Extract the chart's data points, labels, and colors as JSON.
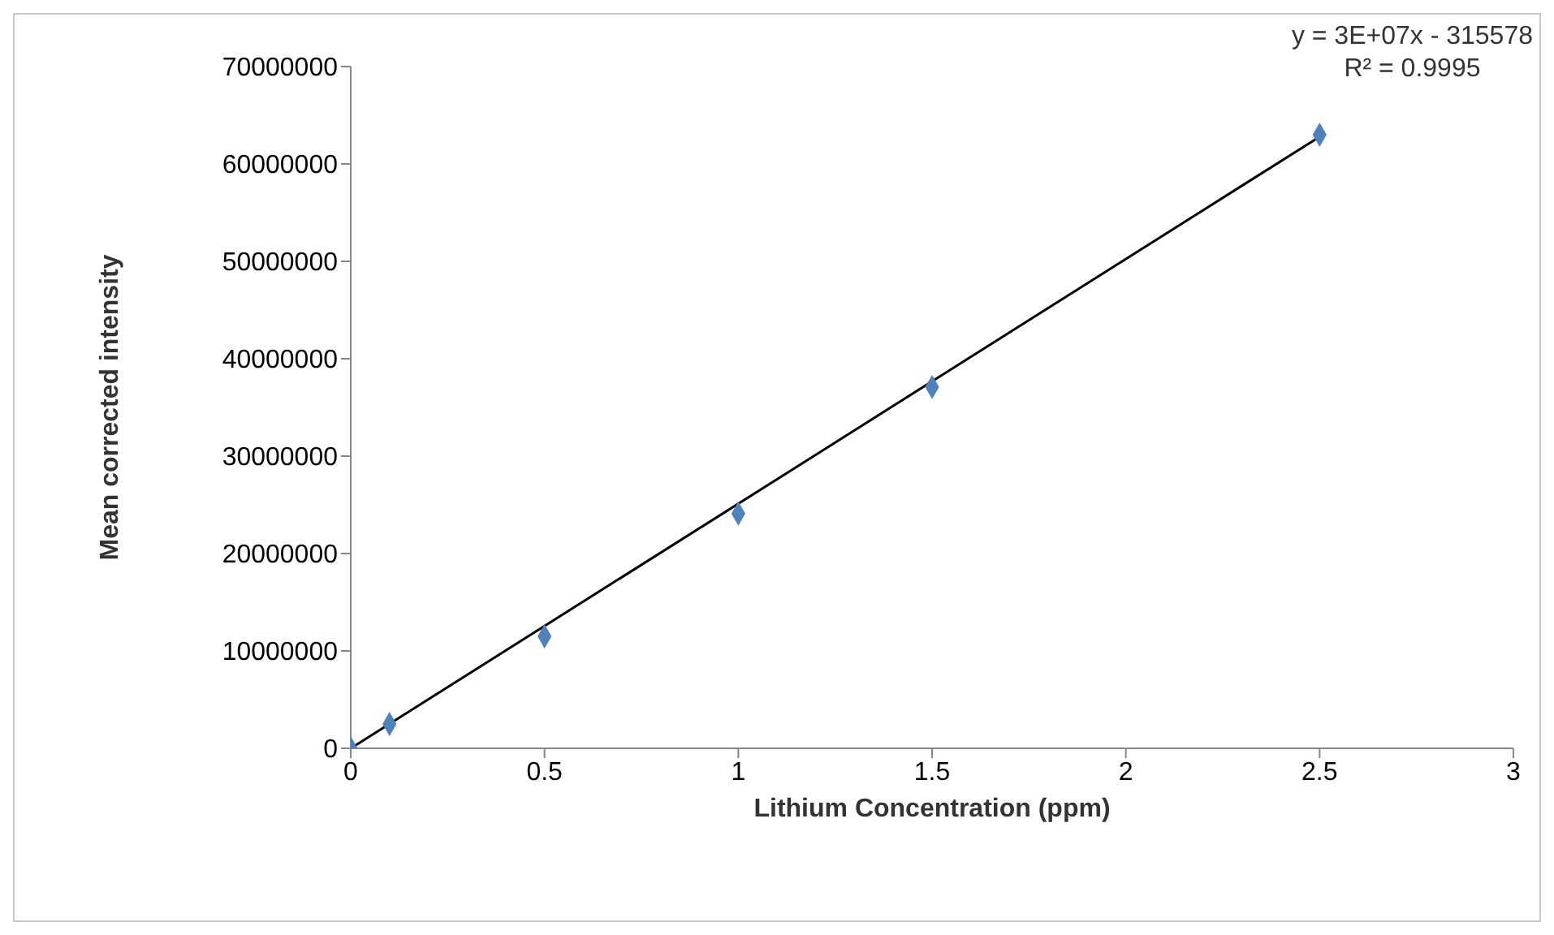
{
  "chart_data": {
    "type": "scatter",
    "xlabel": "Lithium Concentration (ppm)",
    "ylabel": "Mean corrected intensity",
    "x": [
      0,
      0.1,
      0.5,
      1,
      1.5,
      2.5
    ],
    "series": [
      {
        "color": "#4f81bd",
        "marker": "diamond",
        "values": [
          0,
          2500000,
          11500000,
          24100000,
          37100000,
          63000000
        ]
      },
      {
        "type": "line",
        "color": "#000000",
        "marker": "none",
        "line_style": "solid",
        "x": [
          0,
          2.5
        ],
        "values": [
          0,
          62800000
        ]
      }
    ],
    "xlim": [
      0,
      3
    ],
    "xticks": [
      0,
      0.5,
      1,
      1.5,
      2,
      2.5,
      3
    ],
    "ylim": [
      0,
      70000000
    ],
    "yticks": [
      0,
      10000000,
      20000000,
      30000000,
      40000000,
      50000000,
      60000000,
      70000000
    ],
    "annotations": [
      "y = 3E+07x - 315578",
      "R² = 0.9995"
    ]
  }
}
